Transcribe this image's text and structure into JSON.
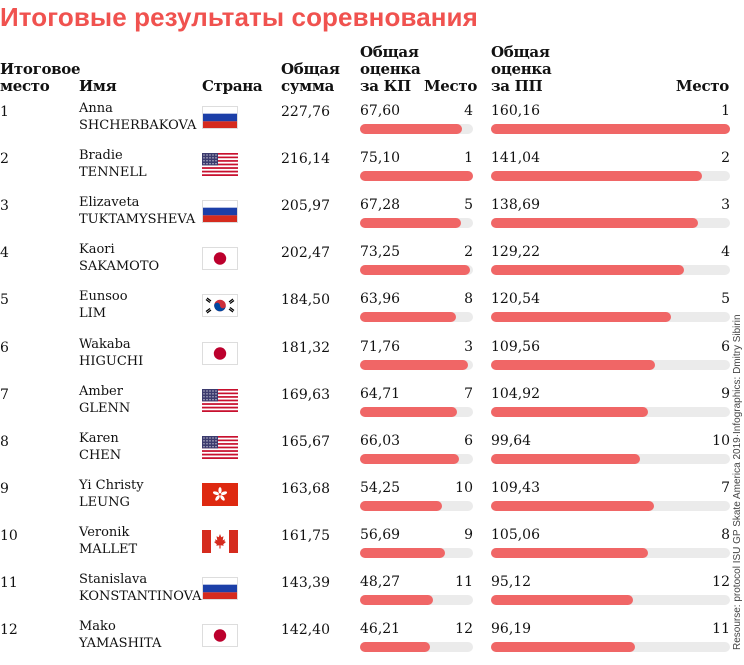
{
  "title": "Итоговые результаты соревнования",
  "headers": {
    "final_place": [
      "Итоговое",
      "место"
    ],
    "name": "Имя",
    "country": "Страна",
    "total": [
      "Общая",
      "сумма"
    ],
    "sp_score": [
      "Общая",
      "оценка",
      "за КП"
    ],
    "sp_place": "Место",
    "fs_score": [
      "Общая",
      "оценка",
      "за ПП"
    ],
    "fs_place": "Место"
  },
  "credit": "Resourse: protocol ISU GP Skate America 2019·Infographics: Dmitry Sibirin",
  "scales": {
    "sp_max": 75.1,
    "fs_max": 160.16
  },
  "rows": [
    {
      "place": "1",
      "first": "Anna",
      "last": "SHCHERBAKOVA",
      "flag": "russia-flag-icon",
      "total": "227,76",
      "sp": "67,60",
      "sp_value": 67.6,
      "sp_place": "4",
      "fs": "160,16",
      "fs_value": 160.16,
      "fs_place": "1"
    },
    {
      "place": "2",
      "first": "Bradie",
      "last": "TENNELL",
      "flag": "usa-flag-icon",
      "total": "216,14",
      "sp": "75,10",
      "sp_value": 75.1,
      "sp_place": "1",
      "fs": "141,04",
      "fs_value": 141.04,
      "fs_place": "2"
    },
    {
      "place": "3",
      "first": "Elizaveta",
      "last": "TUKTAMYSHEVA",
      "flag": "russia-flag-icon",
      "total": "205,97",
      "sp": "67,28",
      "sp_value": 67.28,
      "sp_place": "5",
      "fs": "138,69",
      "fs_value": 138.69,
      "fs_place": "3"
    },
    {
      "place": "4",
      "first": "Kaori",
      "last": "SAKAMOTO",
      "flag": "japan-flag-icon",
      "total": "202,47",
      "sp": "73,25",
      "sp_value": 73.25,
      "sp_place": "2",
      "fs": "129,22",
      "fs_value": 129.22,
      "fs_place": "4"
    },
    {
      "place": "5",
      "first": "Eunsoo",
      "last": "LIM",
      "flag": "korea-flag-icon",
      "total": "184,50",
      "sp": "63,96",
      "sp_value": 63.96,
      "sp_place": "8",
      "fs": "120,54",
      "fs_value": 120.54,
      "fs_place": "5"
    },
    {
      "place": "6",
      "first": "Wakaba",
      "last": "HIGUCHI",
      "flag": "japan-flag-icon",
      "total": "181,32",
      "sp": "71,76",
      "sp_value": 71.76,
      "sp_place": "3",
      "fs": "109,56",
      "fs_value": 109.56,
      "fs_place": "6"
    },
    {
      "place": "7",
      "first": "Amber",
      "last": "GLENN",
      "flag": "usa-flag-icon",
      "total": "169,63",
      "sp": "64,71",
      "sp_value": 64.71,
      "sp_place": "7",
      "fs": "104,92",
      "fs_value": 104.92,
      "fs_place": "9"
    },
    {
      "place": "8",
      "first": "Karen",
      "last": "CHEN",
      "flag": "usa-flag-icon",
      "total": "165,67",
      "sp": "66,03",
      "sp_value": 66.03,
      "sp_place": "6",
      "fs": "99,64",
      "fs_value": 99.64,
      "fs_place": "10"
    },
    {
      "place": "9",
      "first": "Yi Christy",
      "last": "LEUNG",
      "flag": "hongkong-flag-icon",
      "total": "163,68",
      "sp": "54,25",
      "sp_value": 54.25,
      "sp_place": "10",
      "fs": "109,43",
      "fs_value": 109.43,
      "fs_place": "7"
    },
    {
      "place": "10",
      "first": "Veronik",
      "last": "MALLET",
      "flag": "canada-flag-icon",
      "total": "161,75",
      "sp": "56,69",
      "sp_value": 56.69,
      "sp_place": "9",
      "fs": "105,06",
      "fs_value": 105.06,
      "fs_place": "8"
    },
    {
      "place": "11",
      "first": "Stanislava",
      "last": "KONSTANTINOVA",
      "flag": "russia-flag-icon",
      "total": "143,39",
      "sp": "48,27",
      "sp_value": 48.27,
      "sp_place": "11",
      "fs": "95,12",
      "fs_value": 95.12,
      "fs_place": "12"
    },
    {
      "place": "12",
      "first": "Mako",
      "last": "YAMASHITA",
      "flag": "japan-flag-icon",
      "total": "142,40",
      "sp": "46,21",
      "sp_value": 46.21,
      "sp_place": "12",
      "fs": "96,19",
      "fs_value": 96.19,
      "fs_place": "11"
    }
  ],
  "colors": {
    "accent": "#f0524f",
    "bar": "#f06666",
    "track": "#ebebeb"
  }
}
